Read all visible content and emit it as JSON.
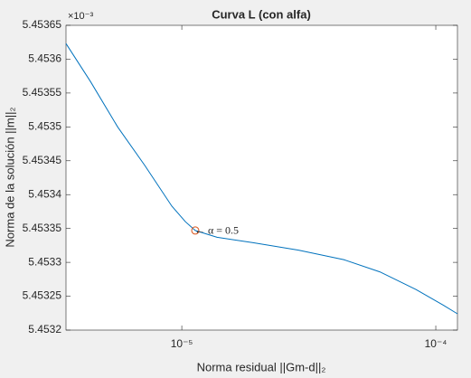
{
  "chart_data": {
    "type": "line",
    "title": "Curva L (con alfa)",
    "x_label": "Norma residual ||Gm-d||₂",
    "y_label": "Norma de la solución ||m||₂",
    "y_exponent": "×10⁻³",
    "x_log": true,
    "x": [
      3.5e-06,
      4.37e-06,
      5.59e-06,
      7.15e-06,
      9.14e-06,
      1.033e-05,
      1.13e-05,
      1.377e-05,
      1.91e-05,
      2.88e-05,
      4.34e-05,
      6.02e-05,
      8.35e-05,
      0.0001068,
      0.0001217
    ],
    "series": [
      {
        "color": "#0072bd",
        "values": [
          5.453623,
          5.453567,
          5.4535,
          5.453443,
          5.453383,
          5.45336,
          5.453347,
          5.453337,
          5.453329,
          5.453318,
          5.453304,
          5.453286,
          5.45326,
          5.453237,
          5.453224
        ]
      }
    ],
    "annotation": {
      "text": "← α = 0.5",
      "x": 1.13e-05,
      "y": 5.453347,
      "color": "#d95319"
    },
    "xlim": [
      3.5e-06,
      0.0001217
    ],
    "ylim": [
      5.4532,
      5.45365
    ],
    "xticks": [
      {
        "value": 1e-05,
        "label": "10⁻⁵"
      },
      {
        "value": 0.0001,
        "label": "10⁻⁴"
      }
    ],
    "yticks": [
      5.4532,
      5.45325,
      5.4533,
      5.45335,
      5.4534,
      5.45345,
      5.4535,
      5.45355,
      5.4536,
      5.45365
    ]
  }
}
